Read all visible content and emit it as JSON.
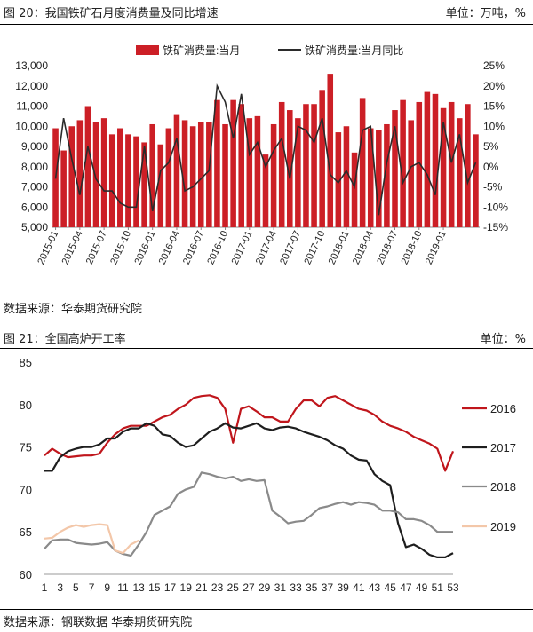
{
  "figure1": {
    "caption": "图 20：我国铁矿石月度消费量及同比增速",
    "unit": "单位：万吨，%",
    "source": "数据来源：华泰期货研究院"
  },
  "figure2": {
    "caption": "图 21：全国高炉开工率",
    "unit": "单位：%",
    "source": "数据来源：钢联数据 华泰期货研究院"
  },
  "colors": {
    "bar": "#cc1f26",
    "yoy_line": "#2b2b2b",
    "s2016": "#c0161c",
    "s2017": "#1e1e1e",
    "s2018": "#8a8a8a",
    "s2019": "#f3c7a9"
  },
  "chart_data": [
    {
      "type": "bar",
      "legend": [
        "铁矿消费量:当月",
        "铁矿消费量:当月同比"
      ],
      "x_ticks": [
        "2015-01",
        "2015-04",
        "2015-07",
        "2015-10",
        "2016-01",
        "2016-04",
        "2016-07",
        "2016-10",
        "2017-01",
        "2017-04",
        "2017-07",
        "2017-10",
        "2018-01",
        "2018-04",
        "2018-07",
        "2018-10",
        "2019-01"
      ],
      "y_left_ticks": [
        "5,000",
        "6,000",
        "7,000",
        "8,000",
        "9,000",
        "10,000",
        "11,000",
        "12,000",
        "13,000"
      ],
      "y_right_ticks": [
        "-15%",
        "-10%",
        "-5%",
        "0%",
        "5%",
        "10%",
        "15%",
        "20%",
        "25%"
      ],
      "ylim_left": [
        5000,
        13000
      ],
      "ylim_right": [
        -15,
        25
      ],
      "start_month": "2015-01",
      "series": [
        {
          "name": "铁矿消费量:当月",
          "axis": "left",
          "values": [
            9900,
            8800,
            10000,
            10300,
            11000,
            10200,
            10400,
            9600,
            9900,
            9600,
            9500,
            9200,
            10100,
            9100,
            9900,
            10600,
            10300,
            10000,
            10200,
            10200,
            11300,
            10100,
            11300,
            11100,
            10400,
            10500,
            8600,
            10100,
            11200,
            10800,
            10400,
            11100,
            11100,
            11800,
            12600,
            9700,
            10000,
            8700,
            11400,
            9900,
            9800,
            10100,
            10800,
            11300,
            10300,
            11200,
            11700,
            11600,
            10900,
            11200,
            10400,
            11100,
            9600
          ]
        },
        {
          "name": "铁矿消费量:当月同比",
          "axis": "right",
          "values": [
            -3,
            12,
            2,
            -7,
            5,
            -3,
            -6,
            -6,
            -9,
            -10,
            -10,
            5,
            -11,
            -1,
            1,
            7,
            -6,
            -5,
            -3,
            -1,
            20,
            16,
            7,
            18,
            3,
            6,
            0,
            4,
            7,
            -3,
            10,
            9,
            6,
            12,
            -2,
            -4,
            -1,
            -5,
            9,
            10,
            -12,
            1,
            10,
            -4,
            0,
            1,
            -2,
            -7,
            11,
            1,
            8,
            -4,
            1
          ]
        }
      ]
    },
    {
      "type": "line",
      "x_ticks": [
        "1",
        "3",
        "5",
        "7",
        "9",
        "11",
        "13",
        "15",
        "17",
        "19",
        "21",
        "23",
        "25",
        "27",
        "29",
        "31",
        "33",
        "35",
        "37",
        "39",
        "41",
        "43",
        "45",
        "47",
        "49",
        "51",
        "53"
      ],
      "y_ticks": [
        "60",
        "65",
        "70",
        "75",
        "80",
        "85"
      ],
      "xlim": [
        1,
        53
      ],
      "ylim": [
        60,
        85
      ],
      "legend_position": "right",
      "series": [
        {
          "name": "2016",
          "color": "#c0161c",
          "values": [
            74,
            74.8,
            74.2,
            73.8,
            73.9,
            74,
            74,
            74.2,
            75.5,
            76.5,
            77.2,
            77.5,
            77.5,
            77.5,
            78,
            78.5,
            78.8,
            79.5,
            80,
            80.8,
            81,
            81.1,
            80.8,
            79.5,
            75.5,
            79.5,
            79.8,
            79.2,
            78.5,
            78.5,
            78,
            78,
            79.5,
            80.5,
            80.5,
            79.8,
            80.8,
            81,
            80.5,
            80,
            79.5,
            79.3,
            78.8,
            78,
            77.5,
            77.2,
            76.8,
            76.2,
            75.8,
            75.4,
            74.8,
            72.2,
            74.5
          ]
        },
        {
          "name": "2017",
          "color": "#1e1e1e",
          "values": [
            72.2,
            72.2,
            73.8,
            74.5,
            74.8,
            75,
            75,
            75.3,
            76,
            76,
            76.8,
            77.2,
            77.2,
            77.8,
            77.5,
            76.5,
            76.3,
            75.5,
            75,
            75.2,
            76,
            76.8,
            77.2,
            77.8,
            77.3,
            77.2,
            77.5,
            77.8,
            77.2,
            77,
            77.3,
            77.4,
            77.2,
            76.8,
            76.5,
            76.2,
            75.8,
            75.2,
            74.8,
            74,
            73.5,
            73.4,
            71.8,
            71,
            70.5,
            66,
            63.2,
            63.5,
            63,
            62.3,
            62,
            62,
            62.5
          ]
        },
        {
          "name": "2018",
          "color": "#8a8a8a",
          "values": [
            63,
            64,
            64.1,
            64.1,
            63.7,
            63.6,
            63.5,
            63.6,
            63.8,
            62.8,
            62.4,
            62.2,
            63.5,
            65,
            67,
            67.5,
            68,
            69.5,
            70,
            70.3,
            72,
            71.8,
            71.5,
            71.3,
            71.5,
            71,
            71.2,
            71,
            71.1,
            67.5,
            66.8,
            66,
            66.2,
            66.3,
            67,
            67.8,
            68,
            68.3,
            68.5,
            68.2,
            68.5,
            68.4,
            68.2,
            67.5,
            67.5,
            67.3,
            66.5,
            66.5,
            66.3,
            65.8,
            65,
            65,
            65
          ]
        },
        {
          "name": "2019",
          "color": "#f3c7a9",
          "values": [
            64.2,
            64.3,
            65,
            65.5,
            65.8,
            65.6,
            65.8,
            65.9,
            65.8,
            62.8,
            62.5,
            63.5,
            64
          ]
        }
      ]
    }
  ]
}
